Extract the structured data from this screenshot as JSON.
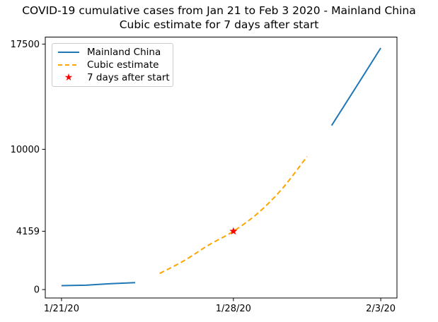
{
  "figure": {
    "title_line1": "COVID-19 cumulative cases from Jan 21 to Feb 3 2020 - Mainland China",
    "title_line2": "Cubic estimate for 7 days after start",
    "background_color": "#ffffff"
  },
  "legend": {
    "position": "upper left",
    "items": [
      {
        "label": "Mainland China",
        "swatch": "solid-line",
        "color": "#1f77b4"
      },
      {
        "label": "Cubic estimate",
        "swatch": "dashed-line",
        "color": "#ffa500"
      },
      {
        "label": "7 days after start",
        "swatch": "star-marker",
        "color": "#ff0000"
      }
    ]
  },
  "chart_data": {
    "type": "line",
    "title": "COVID-19 cumulative cases from Jan 21 to Feb 3 2020 - Mainland China / Cubic estimate for 7 days after start",
    "xlabel": "",
    "ylabel": "",
    "grid": false,
    "legend_position": "upper left",
    "axes": {
      "x": {
        "unit": "days since 1/21/20",
        "range": [
          -0.66,
          13.66
        ],
        "ticks": [
          {
            "day": 0,
            "label": "1/21/20"
          },
          {
            "day": 7,
            "label": "1/28/20"
          },
          {
            "day": 13,
            "label": "2/3/20"
          }
        ]
      },
      "y": {
        "unit": "cumulative cases",
        "range": [
          -600,
          18000
        ],
        "ticks": [
          {
            "value": 0,
            "label": "0"
          },
          {
            "value": 4159,
            "label": "4159"
          },
          {
            "value": 10000,
            "label": "10000"
          },
          {
            "value": 17500,
            "label": "17500"
          }
        ]
      }
    },
    "series": [
      {
        "name": "Mainland China",
        "color": "#1f77b4",
        "style": "solid",
        "smooth": false,
        "note": "line has a gap between 1/24/20 and 2/1/20",
        "x_days": [
          0,
          1,
          2,
          3,
          11,
          12,
          13
        ],
        "dates": [
          "1/21/20",
          "1/22/20",
          "1/23/20",
          "1/24/20",
          "2/1/20",
          "2/2/20",
          "2/3/20"
        ],
        "values": [
          280,
          310,
          420,
          490,
          11700,
          14450,
          17220
        ]
      },
      {
        "name": "Cubic estimate",
        "color": "#ffa500",
        "style": "dashed",
        "smooth": true,
        "x_days": [
          4,
          5,
          6,
          7,
          8,
          9,
          10
        ],
        "dates": [
          "1/25/20",
          "1/26/20",
          "1/27/20",
          "1/28/20",
          "1/29/20",
          "1/30/20",
          "1/31/20"
        ],
        "values": [
          1150,
          2070,
          3180,
          4159,
          5450,
          7220,
          9490
        ]
      }
    ],
    "markers": [
      {
        "name": "7 days after start",
        "shape": "star",
        "color": "#ff0000",
        "x_day": 7,
        "date": "1/28/20",
        "value": 4159
      }
    ]
  }
}
